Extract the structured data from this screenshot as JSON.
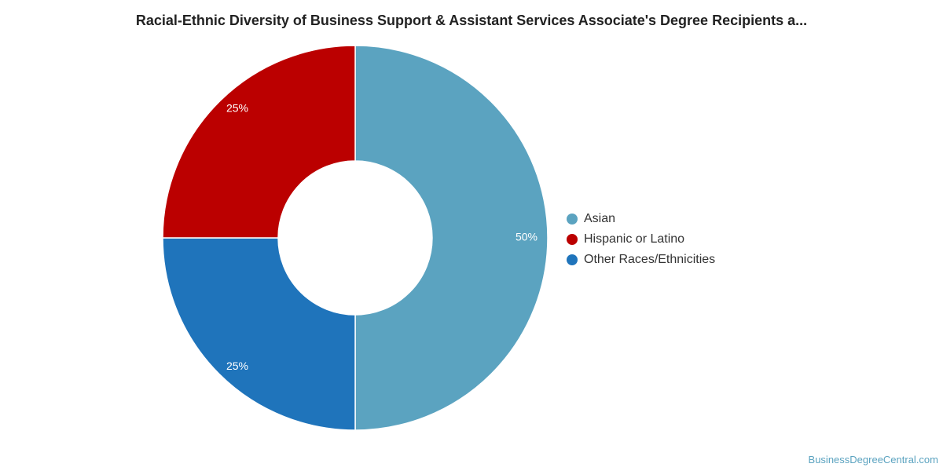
{
  "chart_data": {
    "type": "pie",
    "title": "Racial-Ethnic Diversity of Business Support & Assistant Services Associate's Degree Recipients a...",
    "slices": [
      {
        "name": "Asian",
        "value": 50,
        "label": "50%",
        "color": "#5ba3c0"
      },
      {
        "name": "Other Races/Ethnicities",
        "value": 25,
        "label": "25%",
        "color": "#1f74bb"
      },
      {
        "name": "Hispanic or Latino",
        "value": 25,
        "label": "25%",
        "color": "#bb0000"
      }
    ],
    "legend": {
      "placement": "right",
      "items": [
        {
          "name": "Asian",
          "color": "#5ba3c0"
        },
        {
          "name": "Hispanic or Latino",
          "color": "#bb0000"
        },
        {
          "name": "Other Races/Ethnicities",
          "color": "#1f74bb"
        }
      ]
    }
  },
  "footer": {
    "credit": "BusinessDegreeCentral.com"
  }
}
